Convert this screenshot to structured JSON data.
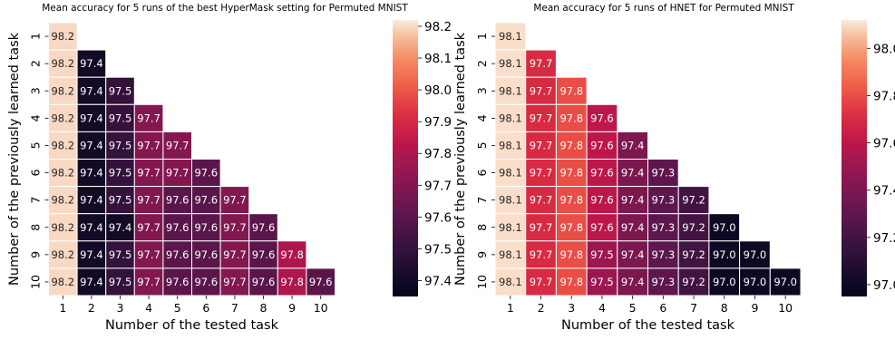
{
  "chart_data": [
    {
      "type": "heatmap",
      "title": "Mean accuracy for 5 runs of the best HyperMask setting for Permuted MNIST",
      "xlabel": "Number of the tested task",
      "ylabel": "Number of the previously learned task",
      "x_ticks": [
        "1",
        "2",
        "3",
        "4",
        "5",
        "6",
        "7",
        "8",
        "9",
        "10"
      ],
      "y_ticks": [
        "1",
        "2",
        "3",
        "4",
        "5",
        "6",
        "7",
        "8",
        "9",
        "10"
      ],
      "colormap": "rocket",
      "color_range": [
        97.35,
        98.22
      ],
      "colorbar_ticks": [
        97.4,
        97.5,
        97.6,
        97.7,
        97.8,
        97.9,
        98.0,
        98.1,
        98.2
      ],
      "values": [
        [
          98.2
        ],
        [
          98.2,
          97.4
        ],
        [
          98.2,
          97.4,
          97.5
        ],
        [
          98.2,
          97.4,
          97.5,
          97.7
        ],
        [
          98.2,
          97.4,
          97.5,
          97.7,
          97.7
        ],
        [
          98.2,
          97.4,
          97.5,
          97.7,
          97.7,
          97.6
        ],
        [
          98.2,
          97.4,
          97.5,
          97.7,
          97.6,
          97.6,
          97.7
        ],
        [
          98.2,
          97.4,
          97.4,
          97.7,
          97.6,
          97.6,
          97.7,
          97.6
        ],
        [
          98.2,
          97.4,
          97.5,
          97.7,
          97.6,
          97.6,
          97.7,
          97.6,
          97.8
        ],
        [
          98.2,
          97.4,
          97.5,
          97.7,
          97.6,
          97.6,
          97.7,
          97.6,
          97.8,
          97.6
        ]
      ]
    },
    {
      "type": "heatmap",
      "title": "Mean accuracy for 5 runs of HNET for Permuted MNIST",
      "xlabel": "Number of the tested task",
      "ylabel": "Number of the previously learned task",
      "x_ticks": [
        "1",
        "2",
        "3",
        "4",
        "5",
        "6",
        "7",
        "8",
        "9",
        "10"
      ],
      "y_ticks": [
        "1",
        "2",
        "3",
        "4",
        "5",
        "6",
        "7",
        "8",
        "9",
        "10"
      ],
      "colormap": "rocket",
      "color_range": [
        96.95,
        98.12
      ],
      "colorbar_ticks": [
        97.0,
        97.2,
        97.4,
        97.6,
        97.8,
        98.0
      ],
      "values": [
        [
          98.1
        ],
        [
          98.1,
          97.7
        ],
        [
          98.1,
          97.7,
          97.8
        ],
        [
          98.1,
          97.7,
          97.8,
          97.6
        ],
        [
          98.1,
          97.7,
          97.8,
          97.6,
          97.4
        ],
        [
          98.1,
          97.7,
          97.8,
          97.6,
          97.4,
          97.3
        ],
        [
          98.1,
          97.7,
          97.8,
          97.6,
          97.4,
          97.3,
          97.2
        ],
        [
          98.1,
          97.7,
          97.8,
          97.6,
          97.4,
          97.3,
          97.2,
          97.0
        ],
        [
          98.1,
          97.7,
          97.8,
          97.5,
          97.4,
          97.3,
          97.2,
          97.0,
          97.0
        ],
        [
          98.1,
          97.7,
          97.8,
          97.5,
          97.4,
          97.3,
          97.2,
          97.0,
          97.0,
          97.0
        ]
      ]
    }
  ]
}
